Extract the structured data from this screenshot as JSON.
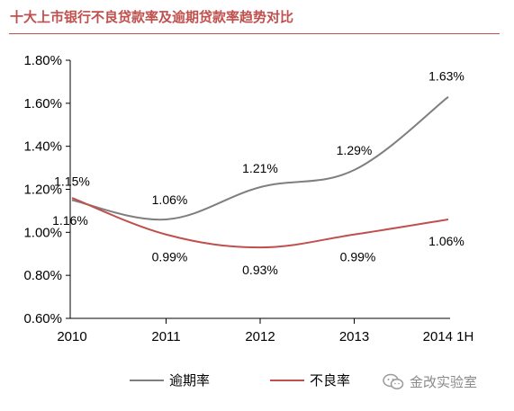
{
  "title": "十大上市银行不良贷款率及逾期贷款率趋势对比",
  "watermark": {
    "text": "金改实验室",
    "icon": "wechat-icon"
  },
  "chart_data": {
    "type": "line",
    "categories": [
      "2010",
      "2011",
      "2012",
      "2013",
      "2014 1H"
    ],
    "y_ticks": [
      "0.60%",
      "0.80%",
      "1.00%",
      "1.20%",
      "1.40%",
      "1.60%",
      "1.80%"
    ],
    "ylim": [
      0.6,
      1.8
    ],
    "grid": false,
    "legend_position": "bottom",
    "series": [
      {
        "name": "逾期率",
        "color": "#7f7f7f",
        "values": [
          1.15,
          1.06,
          1.21,
          1.29,
          1.63
        ],
        "labels": [
          "1.15%",
          "1.06%",
          "1.21%",
          "1.29%",
          "1.63%"
        ]
      },
      {
        "name": "不良率",
        "color": "#c0504d",
        "values": [
          1.16,
          0.99,
          0.93,
          0.99,
          1.06
        ],
        "labels": [
          "1.16%",
          "0.99%",
          "0.93%",
          "0.99%",
          "1.06%"
        ]
      }
    ]
  }
}
